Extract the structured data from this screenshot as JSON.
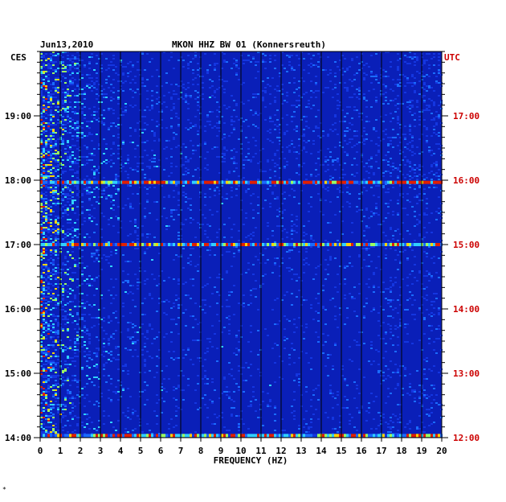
{
  "header": {
    "date": "Jun13,2010",
    "station": "MKON HHZ BW 01 (Konnersreuth)",
    "left_tz": "CES",
    "right_tz": "UTC"
  },
  "chart_data": {
    "type": "heatmap",
    "xlabel": "FREQUENCY (HZ)",
    "xlim": [
      0,
      20
    ],
    "x_ticks": [
      "0",
      "1",
      "2",
      "3",
      "4",
      "5",
      "6",
      "7",
      "8",
      "9",
      "10",
      "11",
      "12",
      "13",
      "14",
      "15",
      "16",
      "17",
      "18",
      "19",
      "20"
    ],
    "ylabel_left": "CES",
    "ylabel_right": "UTC",
    "y_ticks_left": [
      "19:00",
      "18:00",
      "17:00",
      "16:00",
      "15:00",
      "14:00"
    ],
    "y_ticks_right": [
      "17:00",
      "16:00",
      "15:00",
      "14:00",
      "13:00",
      "12:00"
    ],
    "time_range_ces": [
      "14:00",
      "19:50"
    ],
    "colors": {
      "background": "#0a1fb8",
      "grid": "#000000",
      "utc": "#cc0000",
      "label": "#000000"
    },
    "notable_bands": [
      {
        "time_ces": "17:58",
        "intensity": 0.85
      },
      {
        "time_ces": "17:00",
        "intensity": 0.7
      },
      {
        "time_ces": "14:02",
        "intensity": 0.75
      }
    ]
  },
  "footnote": "*"
}
